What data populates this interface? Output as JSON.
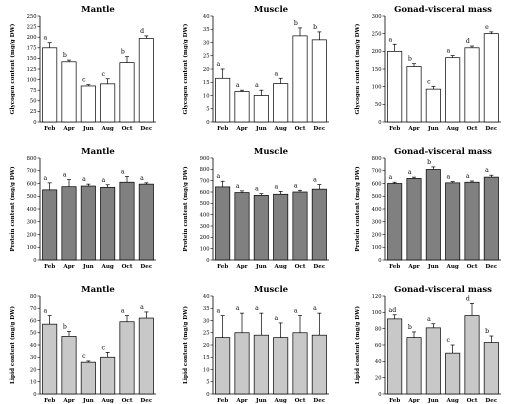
{
  "chart_data": [
    {
      "type": "bar",
      "title": "Mantle",
      "ylabel": "Glycogen content (mg/g DW)",
      "categories": [
        "Feb",
        "Apr",
        "Jun",
        "Aug",
        "Oct",
        "Dec"
      ],
      "values": [
        175,
        142,
        85,
        90,
        140,
        197
      ],
      "errors": [
        12,
        4,
        3,
        12,
        14,
        6
      ],
      "letters": [
        "a",
        "b",
        "c",
        "c",
        "b",
        "d"
      ],
      "ylim": [
        0,
        250
      ],
      "yticks": [
        0,
        25,
        50,
        75,
        100,
        125,
        150,
        175,
        200,
        225,
        250
      ],
      "bar_color": "#ffffff"
    },
    {
      "type": "bar",
      "title": "Muscle",
      "ylabel": "Glycogen content (mg/g DW)",
      "categories": [
        "Feb",
        "Apr",
        "Jun",
        "Aug",
        "Oct",
        "Dec"
      ],
      "values": [
        16.5,
        11.5,
        10,
        14.5,
        32.5,
        31
      ],
      "errors": [
        3.5,
        0.5,
        2,
        2,
        3,
        3
      ],
      "letters": [
        "a",
        "a",
        "a",
        "a",
        "b",
        "b"
      ],
      "ylim": [
        0,
        40
      ],
      "yticks": [
        0,
        5,
        10,
        15,
        20,
        25,
        30,
        35,
        40
      ],
      "bar_color": "#ffffff"
    },
    {
      "type": "bar",
      "title": "Gonad-visceral mass",
      "ylabel": "Glycogen content (mg/g DW)",
      "categories": [
        "Feb",
        "Apr",
        "Jun",
        "Aug",
        "Oct",
        "Dec"
      ],
      "values": [
        200,
        157,
        93,
        182,
        210,
        250
      ],
      "errors": [
        20,
        8,
        8,
        6,
        5,
        5
      ],
      "letters": [
        "a",
        "b",
        "c",
        "a",
        "d",
        "e"
      ],
      "ylim": [
        0,
        300
      ],
      "yticks": [
        0,
        50,
        100,
        150,
        200,
        250,
        300
      ],
      "bar_color": "#ffffff"
    },
    {
      "type": "bar",
      "title": "Mantle",
      "ylabel": "Protein content (mg/g DW)",
      "categories": [
        "Feb",
        "Apr",
        "Jun",
        "Aug",
        "Oct",
        "Dec"
      ],
      "values": [
        550,
        575,
        580,
        570,
        610,
        595
      ],
      "errors": [
        55,
        55,
        15,
        20,
        45,
        10
      ],
      "letters": [
        "a",
        "a",
        "a",
        "a",
        "a",
        "a"
      ],
      "ylim": [
        0,
        800
      ],
      "yticks": [
        0,
        100,
        200,
        300,
        400,
        500,
        600,
        700,
        800
      ],
      "bar_color": "#808080"
    },
    {
      "type": "bar",
      "title": "Muscle",
      "ylabel": "Protein content (mg/g DW)",
      "categories": [
        "Feb",
        "Apr",
        "Jun",
        "Aug",
        "Oct",
        "Dec"
      ],
      "values": [
        645,
        595,
        570,
        580,
        600,
        625
      ],
      "errors": [
        50,
        15,
        15,
        25,
        15,
        40
      ],
      "letters": [
        "a",
        "a",
        "a",
        "a",
        "a",
        "a"
      ],
      "ylim": [
        0,
        900
      ],
      "yticks": [
        0,
        100,
        200,
        300,
        400,
        500,
        600,
        700,
        800,
        900
      ],
      "bar_color": "#808080"
    },
    {
      "type": "bar",
      "title": "Gonad-visceral mass",
      "ylabel": "Protein content (mg/g DW)",
      "categories": [
        "Feb",
        "Apr",
        "Jun",
        "Aug",
        "Oct",
        "Dec"
      ],
      "values": [
        600,
        640,
        710,
        605,
        610,
        650
      ],
      "errors": [
        10,
        10,
        20,
        10,
        10,
        15
      ],
      "letters": [
        "a",
        "a",
        "b",
        "a",
        "a",
        "a"
      ],
      "ylim": [
        0,
        800
      ],
      "yticks": [
        0,
        100,
        200,
        300,
        400,
        500,
        600,
        700,
        800
      ],
      "bar_color": "#808080"
    },
    {
      "type": "bar",
      "title": "Mantle",
      "ylabel": "Lipid content (mg/g DW)",
      "categories": [
        "Feb",
        "Apr",
        "Jun",
        "Aug",
        "Oct",
        "Dec"
      ],
      "values": [
        57,
        47,
        26,
        30,
        59,
        62
      ],
      "errors": [
        7,
        4,
        1,
        4,
        5,
        5
      ],
      "letters": [
        "a",
        "b",
        "c",
        "c",
        "a",
        "a"
      ],
      "ylim": [
        0,
        80
      ],
      "yticks": [
        0,
        10,
        20,
        30,
        40,
        50,
        60,
        70,
        80
      ],
      "bar_color": "#c8c8c8"
    },
    {
      "type": "bar",
      "title": "Muscle",
      "ylabel": "Lipid content (mg/g DW)",
      "categories": [
        "Feb",
        "Apr",
        "Jun",
        "Aug",
        "Oct",
        "Dec"
      ],
      "values": [
        23,
        25,
        24,
        23,
        25,
        24
      ],
      "errors": [
        9,
        8,
        9,
        6,
        7,
        9
      ],
      "letters": [
        "a",
        "a",
        "a",
        "a",
        "a",
        "a"
      ],
      "ylim": [
        0,
        40
      ],
      "yticks": [
        0,
        5,
        10,
        15,
        20,
        25,
        30,
        35,
        40
      ],
      "bar_color": "#c8c8c8"
    },
    {
      "type": "bar",
      "title": "Gonad-visceral mass",
      "ylabel": "Lipid content (mg/g DW)",
      "categories": [
        "Feb",
        "Apr",
        "Jun",
        "Aug",
        "Oct",
        "Dec"
      ],
      "values": [
        92,
        69,
        81,
        50,
        96,
        63
      ],
      "errors": [
        5,
        7,
        5,
        10,
        15,
        8
      ],
      "letters": [
        "ad",
        "b",
        "a",
        "c",
        "d",
        "b"
      ],
      "ylim": [
        0,
        120
      ],
      "yticks": [
        0,
        20,
        40,
        60,
        80,
        100,
        120
      ],
      "bar_color": "#c8c8c8"
    }
  ]
}
